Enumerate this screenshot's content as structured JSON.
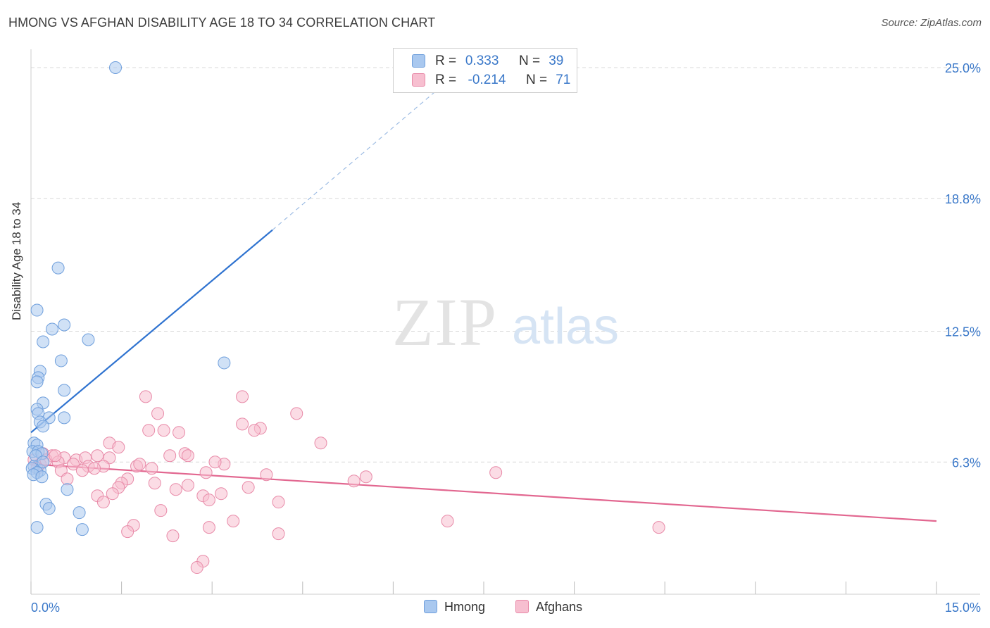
{
  "title": "HMONG VS AFGHAN DISABILITY AGE 18 TO 34 CORRELATION CHART",
  "source": "Source: ZipAtlas.com",
  "watermark": {
    "zip": "ZIP",
    "atlas": "atlas"
  },
  "legend": {
    "rows": [
      {
        "r_label": "R =",
        "r_value": "0.333",
        "n_label": "N =",
        "n_value": "39"
      },
      {
        "r_label": "R =",
        "r_value": "-0.214",
        "n_label": "N =",
        "n_value": "71"
      }
    ]
  },
  "bottom_legend": [
    "Hmong",
    "Afghans"
  ],
  "colors": {
    "hmong_fill": "#a9c8ef",
    "hmong_stroke": "#6f9fdc",
    "hmong_line": "#2f73d0",
    "afghan_fill": "#f7bfd0",
    "afghan_stroke": "#e88aa8",
    "afghan_line": "#e26790",
    "axis_label": "#3a78c9",
    "grid": "#d9d9d9"
  },
  "chart_data": {
    "type": "scatter",
    "title": "HMONG VS AFGHAN DISABILITY AGE 18 TO 34 CORRELATION CHART",
    "xlabel": "",
    "ylabel": "Disability Age 18 to 34",
    "xlim": [
      0,
      15
    ],
    "ylim": [
      0,
      26
    ],
    "x_tick_labels": [
      "0.0%",
      "15.0%"
    ],
    "y_ticks": [
      6.3,
      12.5,
      18.8,
      25.0
    ],
    "y_tick_labels": [
      "6.3%",
      "12.5%",
      "18.8%",
      "25.0%"
    ],
    "series": [
      {
        "name": "Hmong",
        "r": 0.333,
        "n": 39,
        "trend": {
          "x": [
            0.0,
            4.0
          ],
          "y": [
            7.7,
            17.3
          ]
        },
        "trend_ext": {
          "x": [
            4.0,
            7.0
          ],
          "y": [
            17.3,
            24.6
          ]
        },
        "points": [
          [
            1.4,
            25.0
          ],
          [
            0.45,
            15.5
          ],
          [
            0.1,
            13.5
          ],
          [
            0.55,
            12.8
          ],
          [
            0.35,
            12.6
          ],
          [
            0.2,
            12.0
          ],
          [
            0.95,
            12.1
          ],
          [
            0.5,
            11.1
          ],
          [
            3.2,
            11.0
          ],
          [
            0.15,
            10.6
          ],
          [
            0.12,
            10.3
          ],
          [
            0.1,
            10.1
          ],
          [
            0.55,
            9.7
          ],
          [
            0.2,
            9.1
          ],
          [
            0.1,
            8.8
          ],
          [
            0.12,
            8.6
          ],
          [
            0.3,
            8.4
          ],
          [
            0.55,
            8.4
          ],
          [
            0.15,
            8.2
          ],
          [
            0.2,
            8.0
          ],
          [
            0.05,
            7.2
          ],
          [
            0.1,
            7.1
          ],
          [
            0.03,
            6.8
          ],
          [
            0.12,
            6.8
          ],
          [
            0.18,
            6.7
          ],
          [
            0.08,
            6.6
          ],
          [
            0.05,
            6.1
          ],
          [
            0.02,
            6.0
          ],
          [
            0.15,
            5.9
          ],
          [
            0.1,
            5.8
          ],
          [
            0.04,
            5.7
          ],
          [
            0.18,
            5.6
          ],
          [
            0.6,
            5.0
          ],
          [
            0.25,
            4.3
          ],
          [
            0.3,
            4.1
          ],
          [
            0.8,
            3.9
          ],
          [
            0.1,
            3.2
          ],
          [
            0.85,
            3.1
          ],
          [
            0.2,
            6.3
          ]
        ]
      },
      {
        "name": "Afghans",
        "r": -0.214,
        "n": 71,
        "trend": {
          "x": [
            0.0,
            15.0
          ],
          "y": [
            6.2,
            3.5
          ]
        },
        "points": [
          [
            1.9,
            9.4
          ],
          [
            3.5,
            9.4
          ],
          [
            4.4,
            8.6
          ],
          [
            2.1,
            8.6
          ],
          [
            3.5,
            8.1
          ],
          [
            3.8,
            7.9
          ],
          [
            3.7,
            7.8
          ],
          [
            1.95,
            7.8
          ],
          [
            2.2,
            7.8
          ],
          [
            2.45,
            7.7
          ],
          [
            1.3,
            7.2
          ],
          [
            4.8,
            7.2
          ],
          [
            1.45,
            7.0
          ],
          [
            0.2,
            6.7
          ],
          [
            0.35,
            6.6
          ],
          [
            0.55,
            6.5
          ],
          [
            0.75,
            6.4
          ],
          [
            0.9,
            6.5
          ],
          [
            1.1,
            6.6
          ],
          [
            1.3,
            6.5
          ],
          [
            2.55,
            6.7
          ],
          [
            2.6,
            6.6
          ],
          [
            2.3,
            6.6
          ],
          [
            0.05,
            6.4
          ],
          [
            0.15,
            6.2
          ],
          [
            0.25,
            6.4
          ],
          [
            0.45,
            6.3
          ],
          [
            0.7,
            6.2
          ],
          [
            0.95,
            6.1
          ],
          [
            1.2,
            6.1
          ],
          [
            1.75,
            6.1
          ],
          [
            2.0,
            6.0
          ],
          [
            0.5,
            5.9
          ],
          [
            0.85,
            5.9
          ],
          [
            1.05,
            6.0
          ],
          [
            2.9,
            5.8
          ],
          [
            3.2,
            6.2
          ],
          [
            3.9,
            5.7
          ],
          [
            7.7,
            5.8
          ],
          [
            5.55,
            5.6
          ],
          [
            5.35,
            5.4
          ],
          [
            0.6,
            5.5
          ],
          [
            1.6,
            5.5
          ],
          [
            1.5,
            5.3
          ],
          [
            2.05,
            5.3
          ],
          [
            2.6,
            5.2
          ],
          [
            3.6,
            5.1
          ],
          [
            1.45,
            5.1
          ],
          [
            2.4,
            5.0
          ],
          [
            1.35,
            4.8
          ],
          [
            1.1,
            4.7
          ],
          [
            2.85,
            4.7
          ],
          [
            3.15,
            4.8
          ],
          [
            2.95,
            4.5
          ],
          [
            4.1,
            4.4
          ],
          [
            1.2,
            4.4
          ],
          [
            2.15,
            4.0
          ],
          [
            6.9,
            3.5
          ],
          [
            3.35,
            3.5
          ],
          [
            1.7,
            3.3
          ],
          [
            2.95,
            3.2
          ],
          [
            10.4,
            3.2
          ],
          [
            1.6,
            3.0
          ],
          [
            2.35,
            2.8
          ],
          [
            4.1,
            2.9
          ],
          [
            2.85,
            1.6
          ],
          [
            2.75,
            1.3
          ],
          [
            0.1,
            6.0
          ],
          [
            0.4,
            6.6
          ],
          [
            3.05,
            6.3
          ],
          [
            1.8,
            6.2
          ]
        ]
      }
    ]
  }
}
